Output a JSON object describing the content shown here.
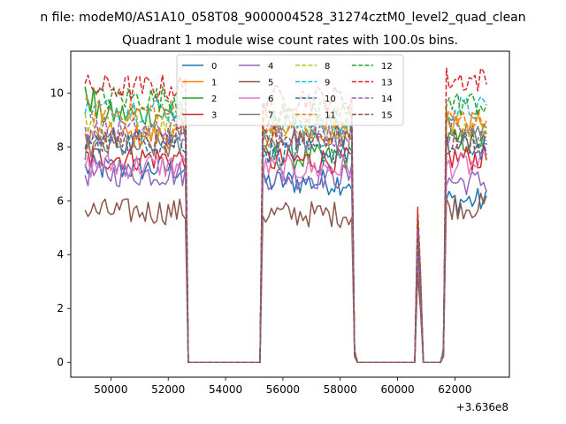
{
  "chart_data": {
    "type": "line",
    "suptitle": "n file: modeM0/AS1A10_058T08_9000004528_31274cztM0_level2_quad_clean",
    "title": "Quadrant 1 module wise count rates with 100.0s bins.",
    "xlabel": "",
    "ylabel": "",
    "x_offset_label": "+3.636e8",
    "xlim": [
      48600,
      63900
    ],
    "ylim": [
      -0.55,
      11.55
    ],
    "xticks": [
      50000,
      52000,
      54000,
      56000,
      58000,
      60000,
      62000
    ],
    "yticks": [
      0,
      2,
      4,
      6,
      8,
      10
    ],
    "grid": false,
    "legend_position": "top-center",
    "legend_columns": 4,
    "bins_seconds": 100,
    "x_range": [
      49100,
      63100
    ],
    "segments": [
      {
        "start": 49100,
        "end": 52600,
        "active": true
      },
      {
        "start": 52700,
        "end": 55200,
        "active": false
      },
      {
        "start": 55300,
        "end": 58400,
        "active": true
      },
      {
        "start": 58600,
        "end": 60600,
        "active": false
      },
      {
        "start": 60700,
        "end": 60800,
        "active": true,
        "note": "short spike"
      },
      {
        "start": 60900,
        "end": 61500,
        "active": false
      },
      {
        "start": 61700,
        "end": 63100,
        "active": true
      }
    ],
    "series": [
      {
        "name": "0",
        "color": "#1f77b4",
        "dash": "solid",
        "base": [
          7.2,
          6.7,
          6.8,
          6.0
        ]
      },
      {
        "name": "1",
        "color": "#ff7f0e",
        "dash": "solid",
        "base": [
          8.4,
          8.5,
          8.6,
          9.0
        ]
      },
      {
        "name": "2",
        "color": "#2ca02c",
        "dash": "solid",
        "base": [
          9.2,
          7.6,
          7.5,
          8.2
        ]
      },
      {
        "name": "3",
        "color": "#d62728",
        "dash": "solid",
        "base": [
          7.6,
          7.5,
          7.6,
          7.6
        ]
      },
      {
        "name": "4",
        "color": "#9467bd",
        "dash": "solid",
        "base": [
          7.0,
          6.9,
          6.3,
          6.7
        ]
      },
      {
        "name": "5",
        "color": "#8c564b",
        "dash": "solid",
        "base": [
          5.6,
          5.5,
          5.5,
          5.8
        ]
      },
      {
        "name": "6",
        "color": "#e377c2",
        "dash": "solid",
        "base": [
          7.3,
          7.2,
          7.0,
          7.3
        ]
      },
      {
        "name": "7",
        "color": "#7f7f7f",
        "dash": "solid",
        "base": [
          8.0,
          8.2,
          8.0,
          8.6
        ]
      },
      {
        "name": "8",
        "color": "#bcbd22",
        "dash": "dashed",
        "base": [
          8.8,
          8.7,
          8.6,
          8.8
        ]
      },
      {
        "name": "9",
        "color": "#17becf",
        "dash": "dashed",
        "base": [
          9.4,
          8.8,
          8.8,
          9.4
        ]
      },
      {
        "name": "10",
        "color": "#1f77b4",
        "dash": "dashed",
        "base": [
          8.2,
          7.8,
          7.4,
          8.0
        ]
      },
      {
        "name": "11",
        "color": "#ff7f0e",
        "dash": "dashed",
        "base": [
          9.3,
          9.0,
          8.3,
          9.0
        ]
      },
      {
        "name": "12",
        "color": "#2ca02c",
        "dash": "dashed",
        "base": [
          9.8,
          9.2,
          9.2,
          9.6
        ]
      },
      {
        "name": "13",
        "color": "#d62728",
        "dash": "dashed",
        "base": [
          10.2,
          9.8,
          9.6,
          10.5
        ]
      },
      {
        "name": "14",
        "color": "#9467bd",
        "dash": "dashed",
        "base": [
          8.6,
          8.5,
          8.2,
          8.6
        ]
      },
      {
        "name": "15",
        "color": "#8c564b",
        "dash": "dashed",
        "base": [
          8.2,
          8.4,
          7.8,
          8.2
        ]
      }
    ]
  }
}
